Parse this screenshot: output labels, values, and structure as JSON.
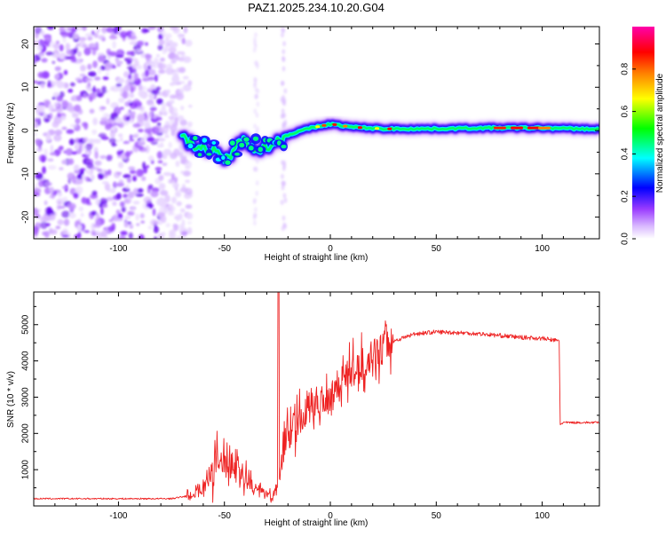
{
  "chart_data": [
    {
      "type": "heatmap",
      "title": "PAZ1.2025.234.10.20.G04",
      "xlabel": "Height of straight line (km)",
      "ylabel": "Frequency (Hz)",
      "xlim": [
        -140,
        127
      ],
      "ylim": [
        -25,
        24
      ],
      "xticks": [
        -100,
        -50,
        0,
        50,
        100
      ],
      "yticks": [
        -20,
        -10,
        0,
        10,
        20
      ],
      "colorbar": {
        "label": "Normalized spectral amplitude",
        "range": [
          0.0,
          1.0
        ],
        "ticks": [
          "0.0",
          "0.2",
          "0.4",
          "0.6",
          "0.8"
        ],
        "colors": [
          "#ffffff",
          "#9a3cff",
          "#0000ff",
          "#00ffff",
          "#00ff00",
          "#ffff00",
          "#ff8000",
          "#ff0000",
          "#ff00ff"
        ]
      },
      "signal_track": {
        "height_km": [
          -70,
          -62,
          -55,
          -50,
          -45,
          -40,
          -35,
          -30,
          -25,
          -20,
          -10,
          0,
          10,
          25,
          50,
          75,
          100,
          127
        ],
        "frequency_hz": [
          -2,
          -3.5,
          -5,
          -7,
          -4,
          -2,
          -4,
          -4,
          -2.5,
          -1,
          0.5,
          1.5,
          0.8,
          0.4,
          0.4,
          0.6,
          0.6,
          0.3
        ]
      },
      "noise_region_km": [
        -140,
        -72
      ]
    },
    {
      "type": "line",
      "xlabel": "Height of straight line (km)",
      "ylabel": "SNR (10 * v/v)",
      "xlim": [
        -140,
        127
      ],
      "ylim": [
        0,
        5900
      ],
      "xticks": [
        -100,
        -50,
        0,
        50,
        100
      ],
      "yticks": [
        1000,
        2000,
        3000,
        4000,
        5000
      ],
      "series": [
        {
          "name": "SNR",
          "color": "#ee2222",
          "x": [
            -140,
            -100,
            -75,
            -65,
            -60,
            -55,
            -52,
            -50,
            -48,
            -45,
            -40,
            -35,
            -30,
            -27,
            -25,
            -24.5,
            -24,
            -22,
            -20,
            -15,
            -10,
            -5,
            0,
            5,
            10,
            15,
            20,
            30,
            40,
            50,
            60,
            70,
            80,
            90,
            100,
            108,
            108.5,
            110,
            127
          ],
          "y": [
            200,
            200,
            200,
            300,
            550,
            950,
            1250,
            1300,
            1250,
            1100,
            700,
            450,
            300,
            280,
            500,
            5900,
            900,
            1600,
            2000,
            2300,
            2700,
            2900,
            3100,
            3500,
            3700,
            3900,
            4150,
            4550,
            4750,
            4800,
            4780,
            4750,
            4700,
            4650,
            4620,
            4550,
            2250,
            2300,
            2300
          ]
        }
      ]
    }
  ]
}
